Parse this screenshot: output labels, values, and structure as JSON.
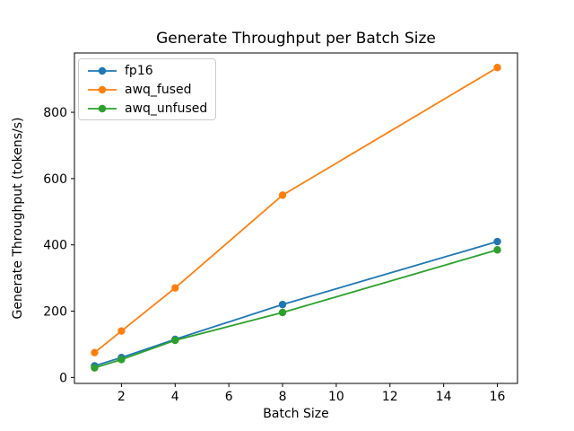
{
  "chart_data": {
    "type": "line",
    "title": "Generate Throughput per Batch Size",
    "xlabel": "Batch Size",
    "ylabel": "Generate Throughput (tokens/s)",
    "x": [
      1,
      2,
      4,
      8,
      16
    ],
    "series": [
      {
        "name": "fp16",
        "color": "#1f77b4",
        "values": [
          35,
          60,
          115,
          220,
          410
        ]
      },
      {
        "name": "awq_fused",
        "color": "#ff7f0e",
        "values": [
          75,
          140,
          270,
          550,
          935
        ]
      },
      {
        "name": "awq_unfused",
        "color": "#2ca02c",
        "values": [
          29,
          54,
          112,
          196,
          385
        ]
      }
    ],
    "xticks": [
      2,
      4,
      6,
      8,
      10,
      12,
      14,
      16
    ],
    "yticks": [
      0,
      200,
      400,
      600,
      800
    ],
    "xlim": [
      0.25,
      16.75
    ],
    "ylim": [
      -18,
      979
    ],
    "grid": false,
    "legend_position": "upper left",
    "marker": "circle",
    "line_width": 1.8,
    "marker_radius": 4.2,
    "axis_color": "#000000"
  }
}
